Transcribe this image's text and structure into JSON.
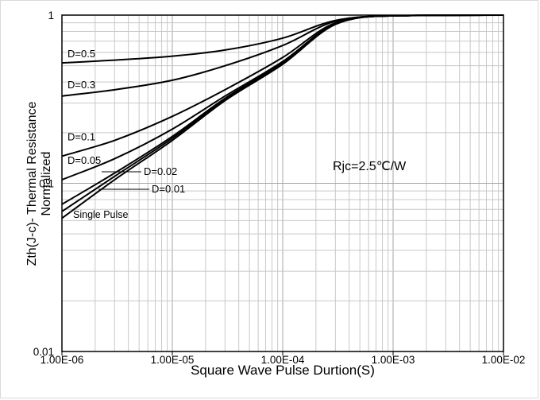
{
  "chart_data": {
    "type": "line",
    "xscale": "log",
    "yscale": "log",
    "xlim": [
      1e-06,
      0.01
    ],
    "ylim": [
      0.01,
      1
    ],
    "xlabel": "Square Wave Pulse Durtion(S)",
    "ylabel_line1": "Zth(J-c)- Thermal Resistance",
    "ylabel_line2": "Normalized",
    "x_ticks": [
      1e-06,
      1e-05,
      0.0001,
      0.001,
      0.01
    ],
    "x_tick_labels": [
      "1.00E-06",
      "1.00E-05",
      "1.00E-04",
      "1.00E-03",
      "1.00E-02"
    ],
    "y_ticks": [
      0.01,
      0.1,
      1
    ],
    "y_tick_labels": [
      "0.01",
      "0.1",
      "1"
    ],
    "grid": "major and minor",
    "legend": "none",
    "annotation": "Rjc=2.5℃/W",
    "series": [
      {
        "name": "D=0.5",
        "x": [
          1e-06,
          3e-06,
          1e-05,
          3e-05,
          0.0001,
          0.0003,
          0.001,
          0.01
        ],
        "y": [
          0.52,
          0.54,
          0.57,
          0.62,
          0.73,
          0.93,
          0.99,
          1.0
        ]
      },
      {
        "name": "D=0.3",
        "x": [
          1e-06,
          3e-06,
          1e-05,
          3e-05,
          0.0001,
          0.0003,
          0.001,
          0.01
        ],
        "y": [
          0.33,
          0.36,
          0.41,
          0.5,
          0.66,
          0.92,
          0.99,
          1.0
        ]
      },
      {
        "name": "D=0.1",
        "x": [
          1e-06,
          3e-06,
          1e-05,
          3e-05,
          0.0001,
          0.0003,
          0.001,
          0.01
        ],
        "y": [
          0.145,
          0.18,
          0.25,
          0.36,
          0.56,
          0.9,
          0.99,
          1.0
        ]
      },
      {
        "name": "D=0.05",
        "x": [
          1e-06,
          3e-06,
          1e-05,
          3e-05,
          0.0001,
          0.0003,
          0.001,
          0.01
        ],
        "y": [
          0.105,
          0.14,
          0.21,
          0.33,
          0.53,
          0.89,
          0.99,
          1.0
        ]
      },
      {
        "name": "D=0.02",
        "x": [
          1e-06,
          3e-06,
          1e-05,
          3e-05,
          0.0001,
          0.0003,
          0.001,
          0.01
        ],
        "y": [
          0.075,
          0.115,
          0.19,
          0.32,
          0.52,
          0.89,
          0.99,
          1.0
        ]
      },
      {
        "name": "D=0.01",
        "x": [
          1e-06,
          3e-06,
          1e-05,
          3e-05,
          0.0001,
          0.0003,
          0.001,
          0.01
        ],
        "y": [
          0.068,
          0.11,
          0.185,
          0.315,
          0.515,
          0.885,
          0.99,
          1.0
        ]
      },
      {
        "name": "Single Pulse",
        "x": [
          1e-06,
          3e-06,
          1e-05,
          3e-05,
          0.0001,
          0.0003,
          0.001,
          0.01
        ],
        "y": [
          0.062,
          0.105,
          0.18,
          0.31,
          0.51,
          0.88,
          0.99,
          1.0
        ]
      }
    ]
  }
}
